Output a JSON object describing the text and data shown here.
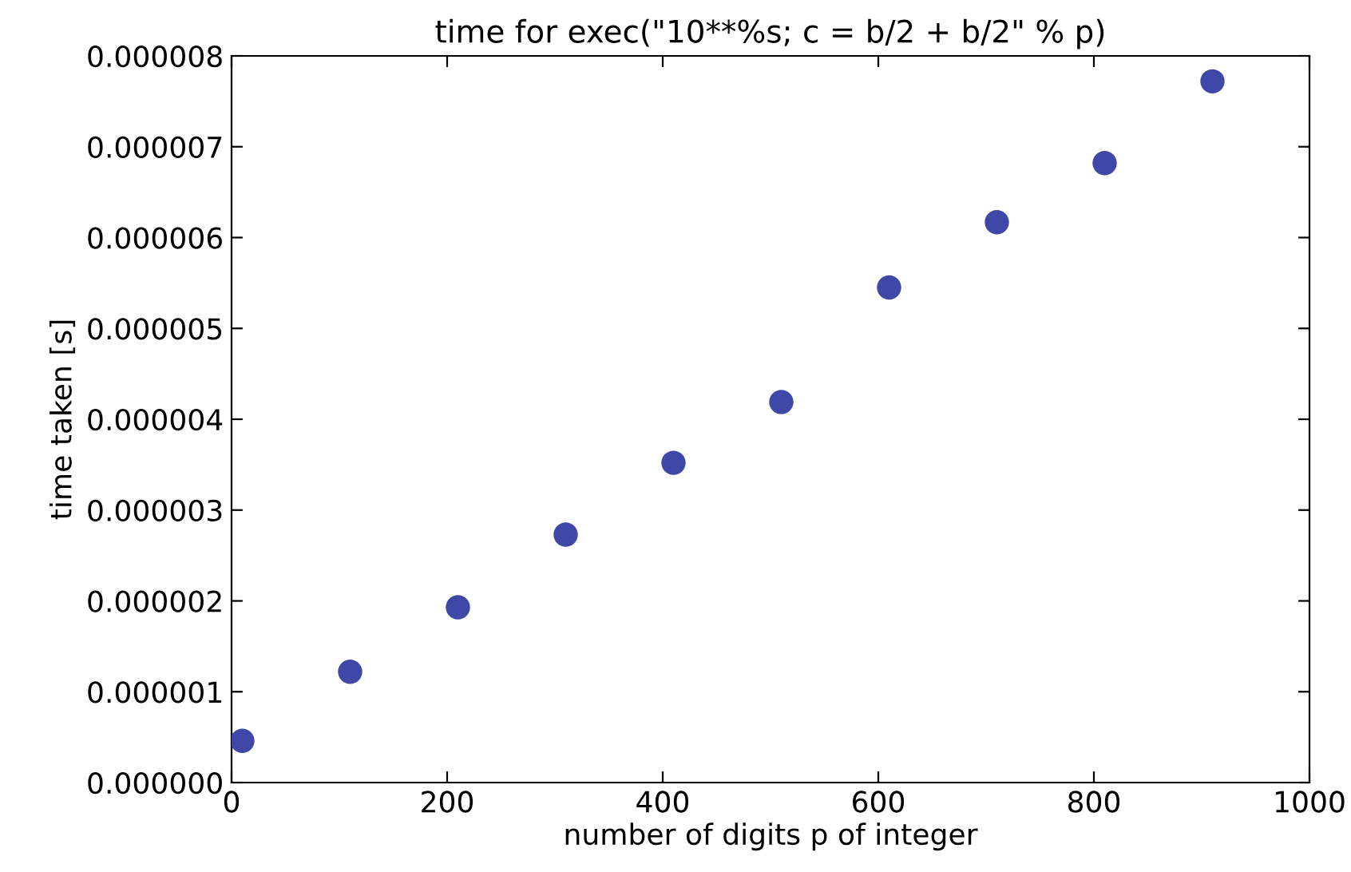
{
  "chart_data": {
    "type": "scatter",
    "title": "time for exec(\"10**%s; c = b/2 + b/2\" % p)",
    "xlabel": "number of digits p of integer",
    "ylabel": "time taken [s]",
    "x": [
      10,
      110,
      210,
      310,
      410,
      510,
      610,
      710,
      810,
      910
    ],
    "series": [
      {
        "color": "#3f48a6",
        "values": [
          4.6e-07,
          1.22e-06,
          1.93e-06,
          2.73e-06,
          3.52e-06,
          4.19e-06,
          5.45e-06,
          6.17e-06,
          6.82e-06,
          7.72e-06
        ]
      }
    ],
    "marker": "circle",
    "grid": false,
    "xlim": [
      0,
      1000
    ],
    "xticks": [
      0,
      200,
      400,
      600,
      800,
      1000
    ],
    "ylim": [
      0,
      8e-06
    ],
    "yticks": [
      {
        "value": 0,
        "label": "0.000000"
      },
      {
        "value": 1e-06,
        "label": "0.000001"
      },
      {
        "value": 2e-06,
        "label": "0.000002"
      },
      {
        "value": 3e-06,
        "label": "0.000003"
      },
      {
        "value": 4e-06,
        "label": "0.000004"
      },
      {
        "value": 5e-06,
        "label": "0.000005"
      },
      {
        "value": 6e-06,
        "label": "0.000006"
      },
      {
        "value": 7e-06,
        "label": "0.000007"
      },
      {
        "value": 8e-06,
        "label": "0.000008"
      }
    ]
  }
}
